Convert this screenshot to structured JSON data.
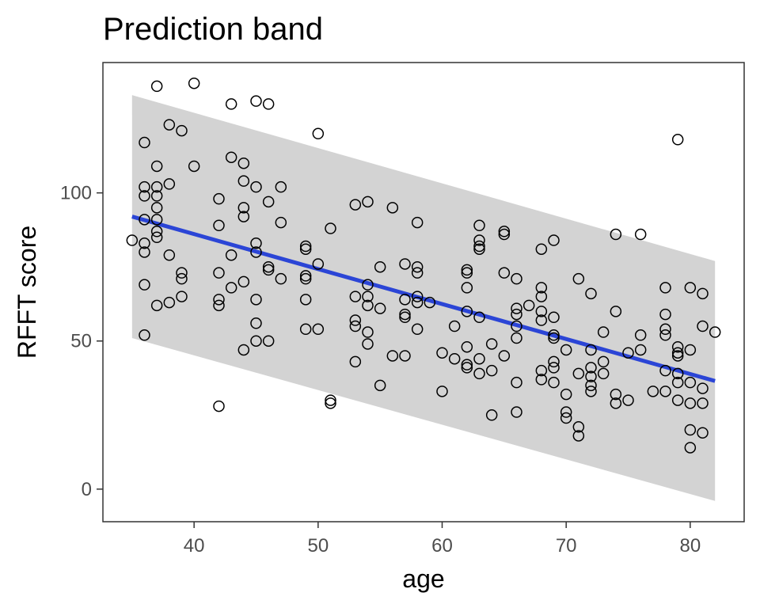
{
  "chart_data": {
    "type": "scatter",
    "title": "Prediction band",
    "xlabel": "age",
    "ylabel": "RFFT score",
    "xlim": [
      32.65,
      84.35
    ],
    "ylim": [
      -11,
      144
    ],
    "xticks": [
      40,
      50,
      60,
      70,
      80
    ],
    "yticks": [
      0,
      50,
      100
    ],
    "grid": false,
    "colors": {
      "band": "#d3d3d3",
      "line": "#2b45d6",
      "points": "#000000",
      "frame": "#333333"
    },
    "fit_line": {
      "x": [
        35,
        82
      ],
      "y": [
        92,
        36.5
      ]
    },
    "prediction_band": {
      "x": [
        35,
        82
      ],
      "upper": [
        133,
        77
      ],
      "lower": [
        51,
        -4
      ]
    },
    "points": [
      [
        35,
        84
      ],
      [
        36,
        117
      ],
      [
        36,
        102
      ],
      [
        36,
        99
      ],
      [
        36,
        91
      ],
      [
        36,
        83
      ],
      [
        36,
        80
      ],
      [
        36,
        69
      ],
      [
        36,
        52
      ],
      [
        37,
        136
      ],
      [
        37,
        109
      ],
      [
        37,
        102
      ],
      [
        37,
        99
      ],
      [
        37,
        95
      ],
      [
        37,
        91
      ],
      [
        37,
        87
      ],
      [
        37,
        85
      ],
      [
        37,
        62
      ],
      [
        38,
        123
      ],
      [
        38,
        103
      ],
      [
        38,
        79
      ],
      [
        38,
        63
      ],
      [
        39,
        121
      ],
      [
        39,
        73
      ],
      [
        39,
        71
      ],
      [
        39,
        65
      ],
      [
        40,
        137
      ],
      [
        40,
        109
      ],
      [
        42,
        98
      ],
      [
        42,
        89
      ],
      [
        42,
        73
      ],
      [
        42,
        64
      ],
      [
        42,
        62
      ],
      [
        42,
        28
      ],
      [
        43,
        130
      ],
      [
        43,
        112
      ],
      [
        43,
        79
      ],
      [
        43,
        68
      ],
      [
        44,
        110
      ],
      [
        44,
        104
      ],
      [
        44,
        95
      ],
      [
        44,
        92
      ],
      [
        44,
        70
      ],
      [
        44,
        47
      ],
      [
        45,
        131
      ],
      [
        45,
        102
      ],
      [
        45,
        83
      ],
      [
        45,
        80
      ],
      [
        45,
        64
      ],
      [
        45,
        56
      ],
      [
        45,
        50
      ],
      [
        46,
        130
      ],
      [
        46,
        97
      ],
      [
        46,
        75
      ],
      [
        46,
        74
      ],
      [
        46,
        50
      ],
      [
        47,
        102
      ],
      [
        47,
        90
      ],
      [
        47,
        71
      ],
      [
        49,
        82
      ],
      [
        49,
        81
      ],
      [
        49,
        72
      ],
      [
        49,
        71
      ],
      [
        49,
        64
      ],
      [
        49,
        54
      ],
      [
        50,
        120
      ],
      [
        50,
        76
      ],
      [
        50,
        54
      ],
      [
        51,
        88
      ],
      [
        51,
        30
      ],
      [
        51,
        29
      ],
      [
        53,
        96
      ],
      [
        53,
        65
      ],
      [
        53,
        57
      ],
      [
        53,
        55
      ],
      [
        53,
        43
      ],
      [
        54,
        97
      ],
      [
        54,
        69
      ],
      [
        54,
        65
      ],
      [
        54,
        62
      ],
      [
        54,
        53
      ],
      [
        54,
        49
      ],
      [
        55,
        75
      ],
      [
        55,
        61
      ],
      [
        55,
        35
      ],
      [
        56,
        95
      ],
      [
        56,
        45
      ],
      [
        57,
        76
      ],
      [
        57,
        64
      ],
      [
        57,
        59
      ],
      [
        57,
        58
      ],
      [
        57,
        45
      ],
      [
        58,
        90
      ],
      [
        58,
        75
      ],
      [
        58,
        73
      ],
      [
        58,
        65
      ],
      [
        58,
        63
      ],
      [
        58,
        54
      ],
      [
        59,
        63
      ],
      [
        60,
        46
      ],
      [
        60,
        33
      ],
      [
        61,
        55
      ],
      [
        61,
        44
      ],
      [
        62,
        74
      ],
      [
        62,
        73
      ],
      [
        62,
        68
      ],
      [
        62,
        60
      ],
      [
        62,
        48
      ],
      [
        62,
        42
      ],
      [
        62,
        41
      ],
      [
        63,
        89
      ],
      [
        63,
        84
      ],
      [
        63,
        82
      ],
      [
        63,
        81
      ],
      [
        63,
        58
      ],
      [
        63,
        44
      ],
      [
        63,
        39
      ],
      [
        64,
        49
      ],
      [
        64,
        40
      ],
      [
        64,
        25
      ],
      [
        65,
        87
      ],
      [
        65,
        86
      ],
      [
        65,
        73
      ],
      [
        65,
        45
      ],
      [
        66,
        71
      ],
      [
        66,
        61
      ],
      [
        66,
        59
      ],
      [
        66,
        55
      ],
      [
        66,
        51
      ],
      [
        66,
        36
      ],
      [
        66,
        26
      ],
      [
        67,
        62
      ],
      [
        68,
        81
      ],
      [
        68,
        68
      ],
      [
        68,
        65
      ],
      [
        68,
        60
      ],
      [
        68,
        57
      ],
      [
        68,
        40
      ],
      [
        68,
        37
      ],
      [
        69,
        84
      ],
      [
        69,
        58
      ],
      [
        69,
        52
      ],
      [
        69,
        51
      ],
      [
        69,
        43
      ],
      [
        69,
        41
      ],
      [
        69,
        36
      ],
      [
        70,
        47
      ],
      [
        70,
        32
      ],
      [
        70,
        26
      ],
      [
        70,
        24
      ],
      [
        71,
        71
      ],
      [
        71,
        39
      ],
      [
        71,
        21
      ],
      [
        71,
        18
      ],
      [
        72,
        66
      ],
      [
        72,
        47
      ],
      [
        72,
        41
      ],
      [
        72,
        38
      ],
      [
        72,
        35
      ],
      [
        72,
        33
      ],
      [
        73,
        53
      ],
      [
        73,
        43
      ],
      [
        73,
        39
      ],
      [
        74,
        86
      ],
      [
        74,
        60
      ],
      [
        74,
        32
      ],
      [
        74,
        29
      ],
      [
        75,
        46
      ],
      [
        75,
        30
      ],
      [
        76,
        86
      ],
      [
        76,
        52
      ],
      [
        76,
        47
      ],
      [
        77,
        33
      ],
      [
        78,
        68
      ],
      [
        78,
        59
      ],
      [
        78,
        54
      ],
      [
        78,
        52
      ],
      [
        78,
        40
      ],
      [
        78,
        33
      ],
      [
        79,
        118
      ],
      [
        79,
        48
      ],
      [
        79,
        46
      ],
      [
        79,
        45
      ],
      [
        79,
        39
      ],
      [
        79,
        36
      ],
      [
        79,
        30
      ],
      [
        80,
        68
      ],
      [
        80,
        47
      ],
      [
        80,
        36
      ],
      [
        80,
        29
      ],
      [
        80,
        20
      ],
      [
        80,
        14
      ],
      [
        81,
        66
      ],
      [
        81,
        55
      ],
      [
        81,
        34
      ],
      [
        81,
        29
      ],
      [
        81,
        19
      ],
      [
        82,
        53
      ]
    ]
  }
}
